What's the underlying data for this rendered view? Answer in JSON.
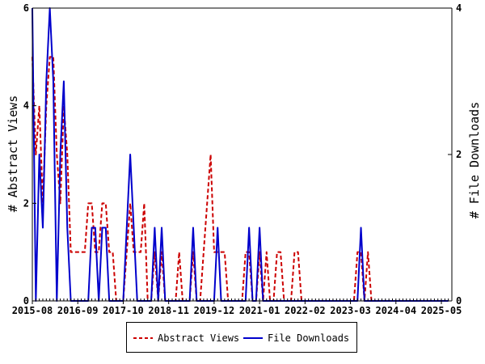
{
  "chart_data": {
    "type": "line",
    "x_ticks": [
      "2015-08",
      "2016-09",
      "2017-10",
      "2018-11",
      "2019-12",
      "2021-01",
      "2022-02",
      "2023-03",
      "2024-04",
      "2025-05"
    ],
    "ylabel": "# Abstract Views",
    "y2label": "# File Downloads",
    "ylim": [
      0,
      6
    ],
    "y2lim": [
      0,
      4
    ],
    "y_ticks": [
      "0",
      "2",
      "4",
      "6"
    ],
    "y2_ticks": [
      "0",
      "2",
      "4"
    ],
    "grid": false,
    "legend_placement": "bottom-center",
    "series": [
      {
        "name": "Abstract Views",
        "axis": "left",
        "color": "#cc0000",
        "style": "dashed",
        "x": [
          "2015-08",
          "2015-09",
          "2015-10",
          "2015-11",
          "2015-12",
          "2016-01",
          "2016-02",
          "2016-03",
          "2016-04",
          "2016-05",
          "2016-06",
          "2016-07",
          "2016-08",
          "2016-09",
          "2016-10",
          "2016-11",
          "2016-12",
          "2017-01",
          "2017-02",
          "2017-03",
          "2017-04",
          "2017-05",
          "2017-06",
          "2017-07",
          "2017-08",
          "2017-09",
          "2017-10",
          "2017-11",
          "2017-12",
          "2018-01",
          "2018-02",
          "2018-03",
          "2018-04",
          "2018-05",
          "2018-06",
          "2018-07",
          "2018-08",
          "2018-09",
          "2018-10",
          "2018-11",
          "2018-12",
          "2019-01",
          "2019-02",
          "2019-03",
          "2019-04",
          "2019-05",
          "2019-06",
          "2019-07",
          "2019-08",
          "2019-09",
          "2019-10",
          "2019-11",
          "2019-12",
          "2020-01",
          "2020-02",
          "2020-03",
          "2020-04",
          "2020-05",
          "2020-06",
          "2020-07",
          "2020-08",
          "2020-09",
          "2020-10",
          "2020-11",
          "2020-12",
          "2021-01",
          "2021-02",
          "2021-03",
          "2021-04",
          "2021-05",
          "2021-06",
          "2021-07",
          "2021-08",
          "2021-09",
          "2021-10",
          "2021-11",
          "2021-12",
          "2022-01",
          "2022-02",
          "2023-01",
          "2023-02",
          "2023-03",
          "2023-04",
          "2023-05",
          "2023-06",
          "2023-07",
          "2023-08",
          "2023-09",
          "2023-10",
          "2023-11",
          "2024-01",
          "2025-07"
        ],
        "values": [
          5,
          3,
          4,
          2,
          4,
          5,
          5,
          3,
          2,
          4,
          3,
          1,
          1,
          1,
          1,
          1,
          2,
          2,
          1,
          1,
          2,
          2,
          1,
          1,
          0,
          0,
          0,
          1,
          2,
          1,
          1,
          1,
          2,
          0,
          0,
          1,
          0,
          1,
          0,
          0,
          0,
          0,
          1,
          0,
          0,
          0,
          1,
          0,
          0,
          1,
          2,
          3,
          1,
          1,
          1,
          1,
          0,
          0,
          0,
          0,
          0,
          1,
          1,
          0,
          0,
          1,
          0,
          1,
          0,
          0,
          1,
          1,
          0,
          0,
          0,
          1,
          1,
          0,
          0,
          0,
          0,
          0,
          0,
          1,
          1,
          0,
          1,
          0,
          0,
          0,
          0,
          0
        ]
      },
      {
        "name": "File Downloads",
        "axis": "right",
        "color": "#0000cc",
        "style": "solid",
        "x": [
          "2015-08",
          "2015-09",
          "2015-10",
          "2015-11",
          "2015-12",
          "2016-01",
          "2016-02",
          "2016-03",
          "2016-04",
          "2016-05",
          "2016-06",
          "2016-07",
          "2016-08",
          "2016-09",
          "2016-10",
          "2016-11",
          "2016-12",
          "2017-01",
          "2017-02",
          "2017-03",
          "2017-04",
          "2017-05",
          "2017-06",
          "2017-07",
          "2017-08",
          "2017-09",
          "2017-10",
          "2017-11",
          "2017-12",
          "2018-01",
          "2018-02",
          "2018-03",
          "2018-04",
          "2018-05",
          "2018-06",
          "2018-07",
          "2018-08",
          "2018-09",
          "2018-10",
          "2018-11",
          "2018-12",
          "2019-01",
          "2019-02",
          "2019-03",
          "2019-04",
          "2019-05",
          "2019-06",
          "2019-07",
          "2019-08",
          "2019-09",
          "2019-10",
          "2019-11",
          "2019-12",
          "2020-01",
          "2020-02",
          "2020-03",
          "2020-04",
          "2020-05",
          "2020-06",
          "2020-07",
          "2020-08",
          "2020-09",
          "2020-10",
          "2020-11",
          "2020-12",
          "2021-01",
          "2021-02",
          "2021-03",
          "2021-04",
          "2021-05",
          "2021-06",
          "2021-07",
          "2021-08",
          "2021-09",
          "2021-10",
          "2021-11",
          "2021-12",
          "2022-01",
          "2022-02",
          "2023-01",
          "2023-02",
          "2023-03",
          "2023-04",
          "2023-05",
          "2023-06",
          "2023-07",
          "2023-08",
          "2023-09",
          "2023-10",
          "2023-11",
          "2024-01",
          "2025-07"
        ],
        "values": [
          4,
          0,
          2,
          1,
          3,
          4,
          3,
          0,
          2,
          3,
          1,
          0,
          0,
          0,
          0,
          0,
          0,
          1,
          1,
          0,
          1,
          1,
          0,
          0,
          0,
          0,
          0,
          1,
          2,
          1,
          0,
          0,
          0,
          0,
          0,
          1,
          0,
          1,
          0,
          0,
          0,
          0,
          0,
          0,
          0,
          0,
          1,
          0,
          0,
          0,
          0,
          0,
          0,
          1,
          0,
          0,
          0,
          0,
          0,
          0,
          0,
          0,
          1,
          0,
          0,
          1,
          0,
          0,
          0,
          0,
          0,
          0,
          0,
          0,
          0,
          0,
          0,
          0,
          0,
          0,
          0,
          0,
          0,
          0,
          1,
          0,
          0,
          0,
          0,
          0,
          0,
          0
        ]
      }
    ]
  },
  "legend": {
    "items": [
      {
        "label": "Abstract Views",
        "color": "#cc0000"
      },
      {
        "label": "File Downloads",
        "color": "#0000cc"
      }
    ]
  }
}
